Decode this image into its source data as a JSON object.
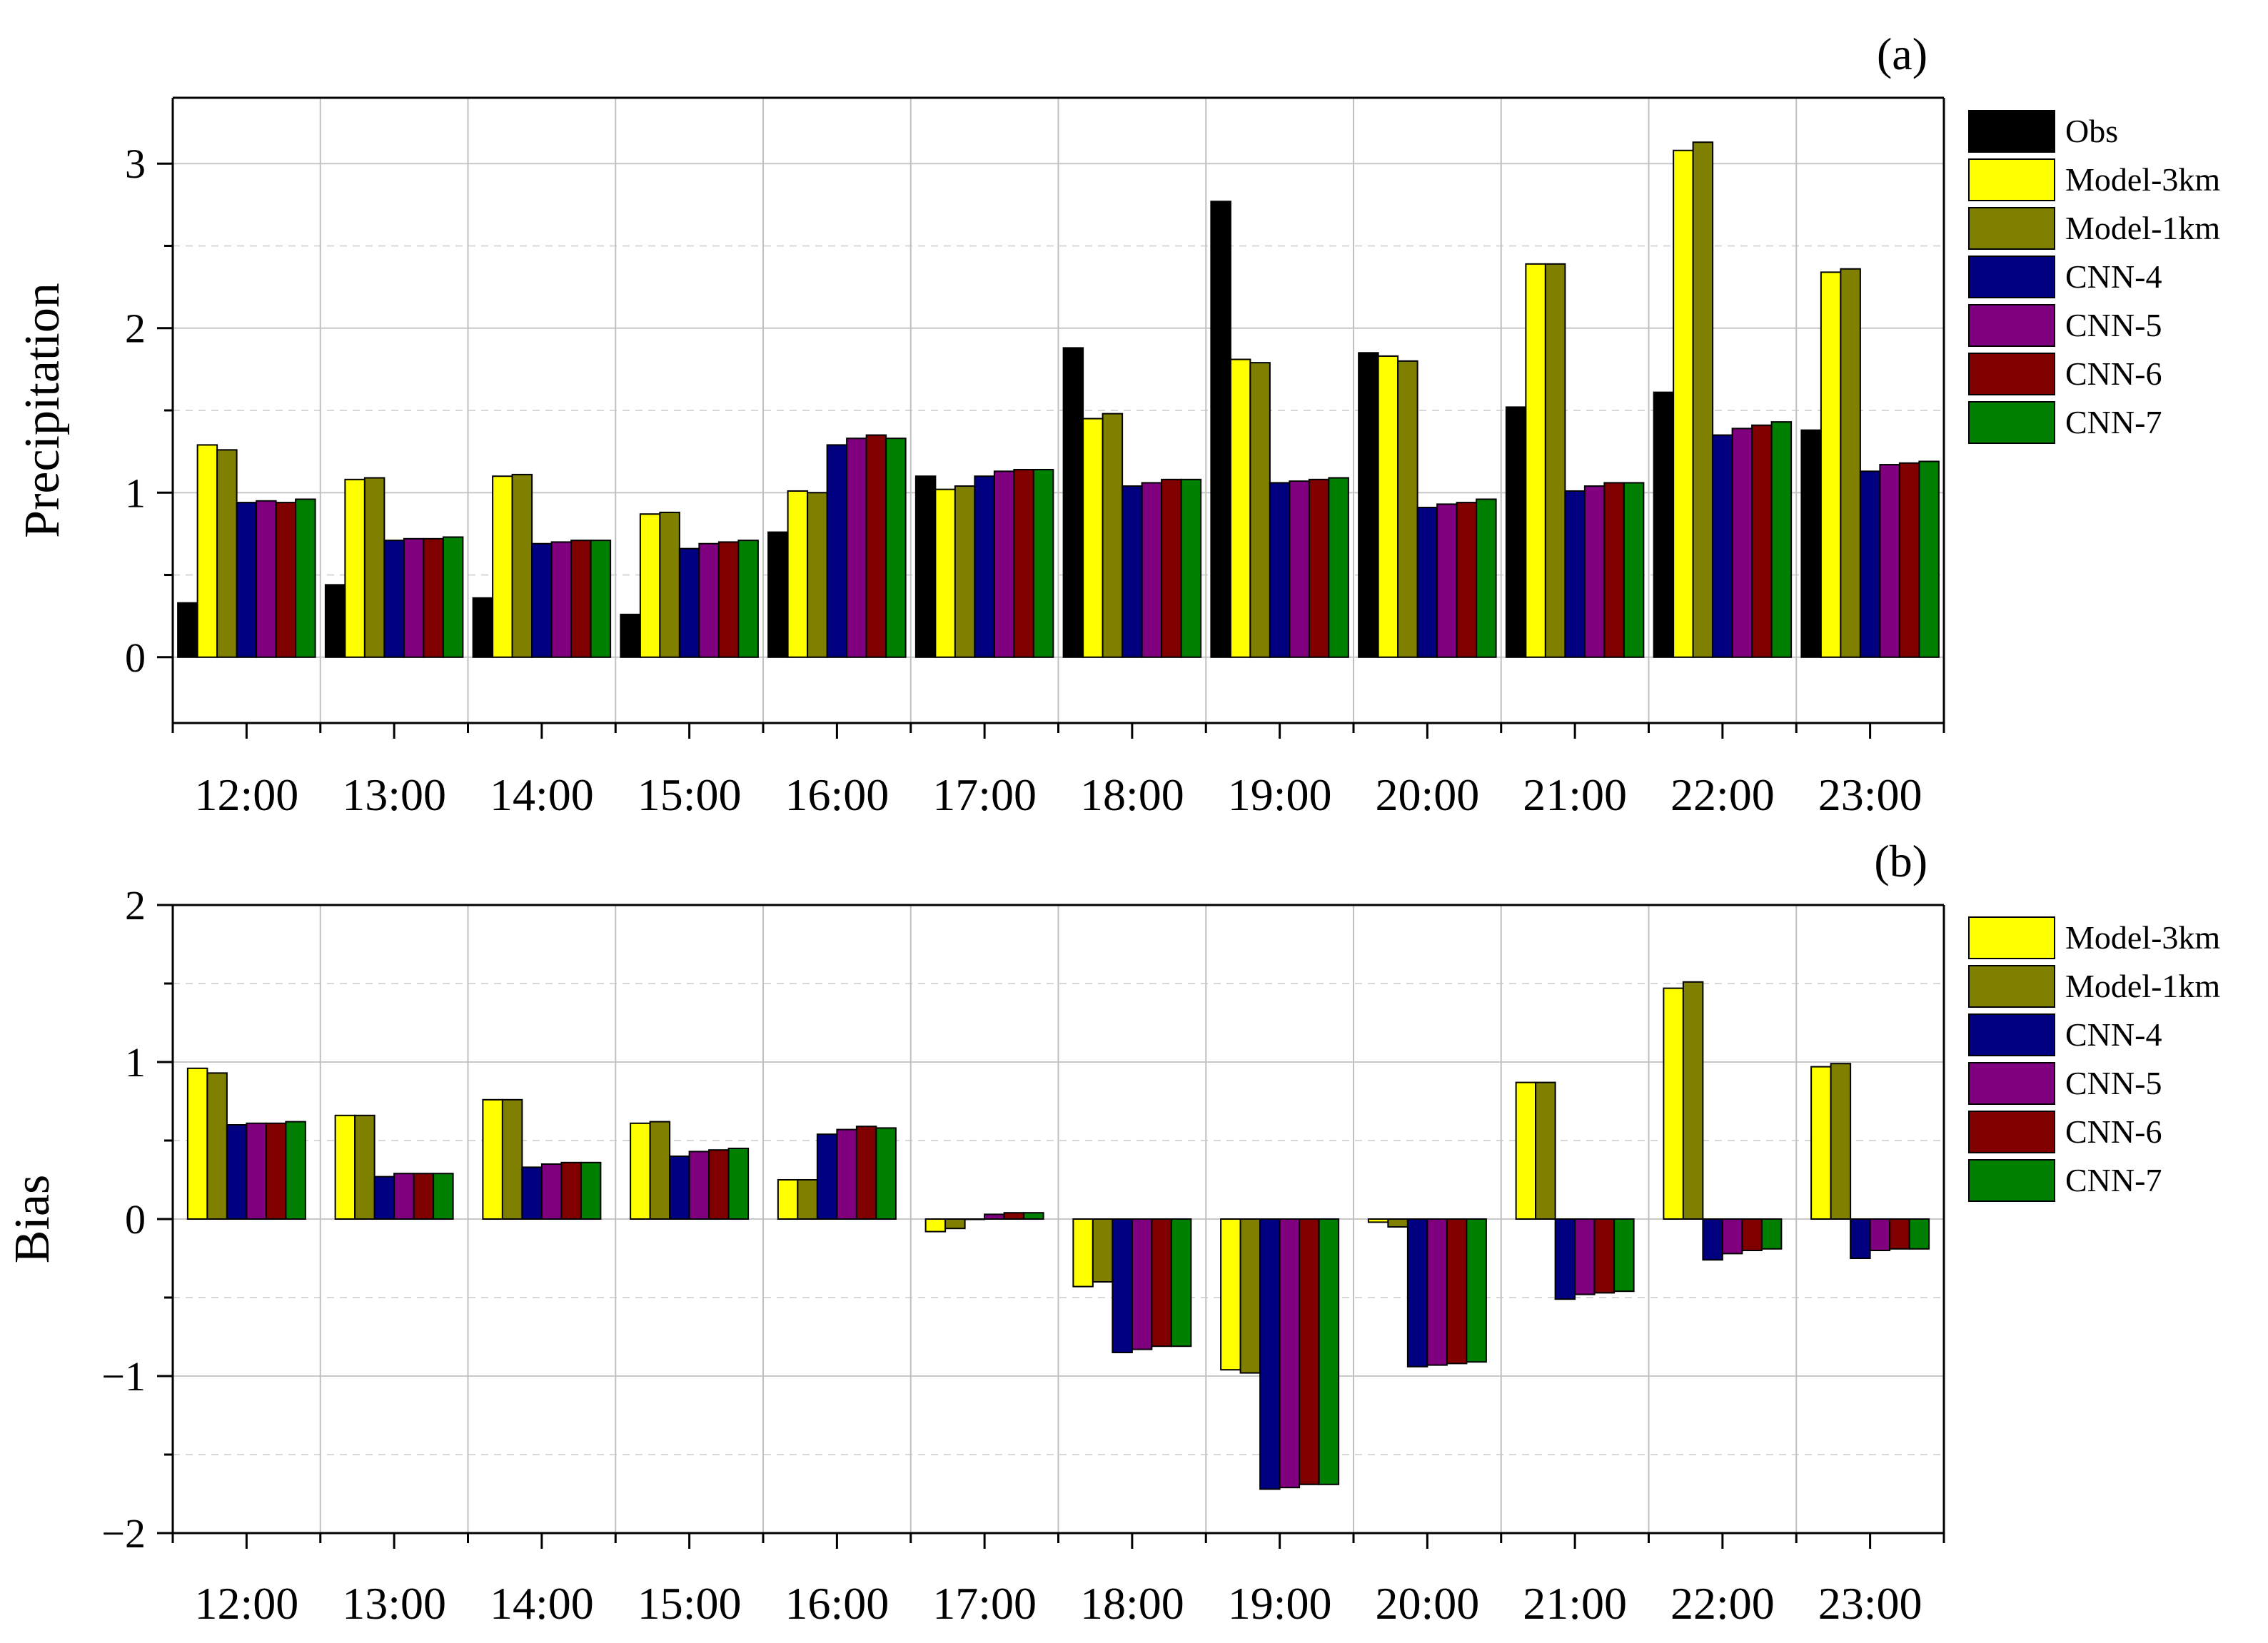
{
  "colors": {
    "Obs": "#000000",
    "Model-3km": "#ffff00",
    "Model-1km": "#808000",
    "CNN-4": "#000080",
    "CNN-5": "#800080",
    "CNN-6": "#800000",
    "CNN-7": "#008000"
  },
  "chart_data": [
    {
      "type": "bar",
      "panel_label": "(a)",
      "ylabel": "Precipitation",
      "xlabel": "",
      "ylim": [
        -0.4,
        3.4
      ],
      "yticks": [
        0,
        1,
        2,
        3
      ],
      "ytick_labels": [
        "0",
        "1",
        "2",
        "3"
      ],
      "grid": true,
      "legend_position": "right",
      "categories": [
        "12:00",
        "13:00",
        "14:00",
        "15:00",
        "16:00",
        "17:00",
        "18:00",
        "19:00",
        "20:00",
        "21:00",
        "22:00",
        "23:00"
      ],
      "series": [
        {
          "name": "Obs",
          "values": [
            0.33,
            0.44,
            0.36,
            0.26,
            0.76,
            1.1,
            1.88,
            2.77,
            1.85,
            1.52,
            1.61,
            1.38
          ]
        },
        {
          "name": "Model-3km",
          "values": [
            1.29,
            1.08,
            1.1,
            0.87,
            1.01,
            1.02,
            1.45,
            1.81,
            1.83,
            2.39,
            3.08,
            2.34
          ]
        },
        {
          "name": "Model-1km",
          "values": [
            1.26,
            1.09,
            1.11,
            0.88,
            1.0,
            1.04,
            1.48,
            1.79,
            1.8,
            2.39,
            3.13,
            2.36
          ]
        },
        {
          "name": "CNN-4",
          "values": [
            0.94,
            0.71,
            0.69,
            0.66,
            1.29,
            1.1,
            1.04,
            1.06,
            0.91,
            1.01,
            1.35,
            1.13
          ]
        },
        {
          "name": "CNN-5",
          "values": [
            0.95,
            0.72,
            0.7,
            0.69,
            1.33,
            1.13,
            1.06,
            1.07,
            0.93,
            1.04,
            1.39,
            1.17
          ]
        },
        {
          "name": "CNN-6",
          "values": [
            0.94,
            0.72,
            0.71,
            0.7,
            1.35,
            1.14,
            1.08,
            1.08,
            0.94,
            1.06,
            1.41,
            1.18
          ]
        },
        {
          "name": "CNN-7",
          "values": [
            0.96,
            0.73,
            0.71,
            0.71,
            1.33,
            1.14,
            1.08,
            1.09,
            0.96,
            1.06,
            1.43,
            1.19
          ]
        }
      ]
    },
    {
      "type": "bar",
      "panel_label": "(b)",
      "ylabel": "Bias",
      "xlabel": "",
      "ylim": [
        -2,
        2
      ],
      "yticks": [
        -2,
        -1,
        0,
        1,
        2
      ],
      "ytick_labels": [
        "−2",
        "−1",
        "0",
        "1",
        "2"
      ],
      "grid": true,
      "legend_position": "right",
      "categories": [
        "12:00",
        "13:00",
        "14:00",
        "15:00",
        "16:00",
        "17:00",
        "18:00",
        "19:00",
        "20:00",
        "21:00",
        "22:00",
        "23:00"
      ],
      "series": [
        {
          "name": "Model-3km",
          "values": [
            0.96,
            0.66,
            0.76,
            0.61,
            0.25,
            -0.08,
            -0.43,
            -0.96,
            -0.02,
            0.87,
            1.47,
            0.97
          ]
        },
        {
          "name": "Model-1km",
          "values": [
            0.93,
            0.66,
            0.76,
            0.62,
            0.25,
            -0.06,
            -0.4,
            -0.98,
            -0.05,
            0.87,
            1.51,
            0.99
          ]
        },
        {
          "name": "CNN-4",
          "values": [
            0.6,
            0.27,
            0.33,
            0.4,
            0.54,
            0.0,
            -0.85,
            -1.72,
            -0.94,
            -0.51,
            -0.26,
            -0.25
          ]
        },
        {
          "name": "CNN-5",
          "values": [
            0.61,
            0.29,
            0.35,
            0.43,
            0.57,
            0.03,
            -0.83,
            -1.71,
            -0.93,
            -0.48,
            -0.22,
            -0.2
          ]
        },
        {
          "name": "CNN-6",
          "values": [
            0.61,
            0.29,
            0.36,
            0.44,
            0.59,
            0.04,
            -0.81,
            -1.69,
            -0.92,
            -0.47,
            -0.2,
            -0.19
          ]
        },
        {
          "name": "CNN-7",
          "values": [
            0.62,
            0.29,
            0.36,
            0.45,
            0.58,
            0.04,
            -0.81,
            -1.69,
            -0.91,
            -0.46,
            -0.19,
            -0.19
          ]
        }
      ]
    }
  ]
}
